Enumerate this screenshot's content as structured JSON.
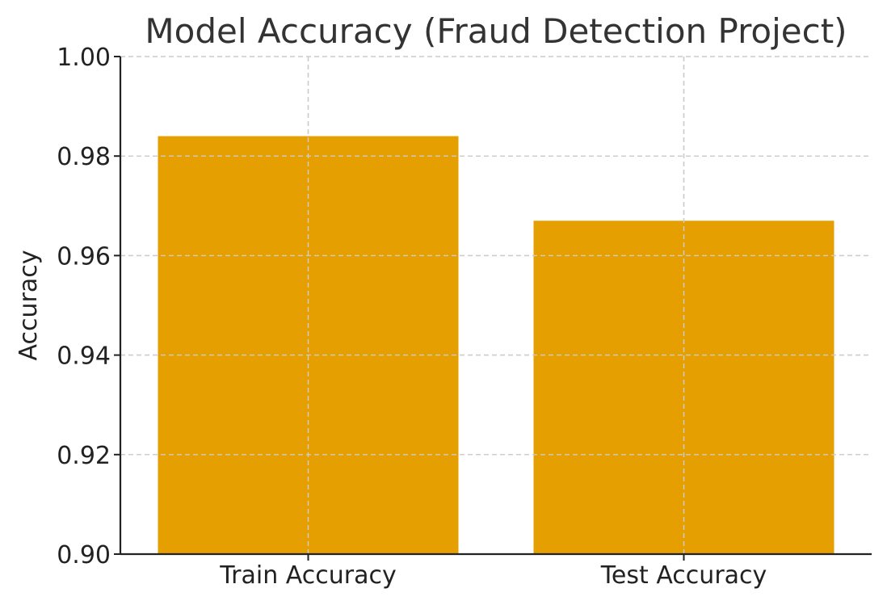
{
  "chart_data": {
    "type": "bar",
    "title": "Model Accuracy (Fraud Detection Project)",
    "xlabel": "",
    "ylabel": "Accuracy",
    "categories": [
      "Train Accuracy",
      "Test Accuracy"
    ],
    "values": [
      0.984,
      0.967
    ],
    "ylim": [
      0.9,
      1.0
    ],
    "yticks": [
      0.9,
      0.92,
      0.94,
      0.96,
      0.98,
      1.0
    ],
    "ytick_labels": [
      "0.90",
      "0.92",
      "0.94",
      "0.96",
      "0.98",
      "1.00"
    ],
    "grid": true,
    "bar_color": "#E69F00"
  }
}
